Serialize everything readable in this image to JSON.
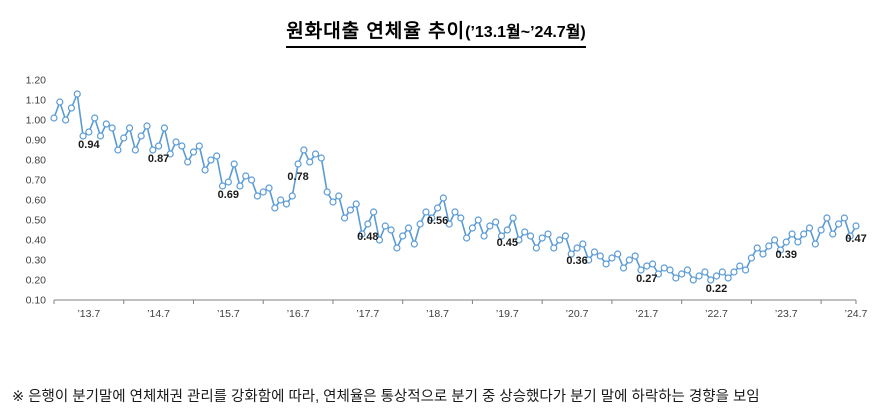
{
  "title": {
    "main": "원화대출 연체율 추이",
    "range": "(’13.1월~’24.7월)"
  },
  "footnote": "※ 은행이 분기말에 연체채권 관리를 강화함에 따라, 연체율은 통상적으로 분기 중 상승했다가 분기 말에 하락하는 경향을 보임",
  "chart_data": {
    "type": "line",
    "title": "원화대출 연체율 추이(’13.1월~’24.7월)",
    "x_start": "2013-01",
    "x_end": "2024-07",
    "x_unit": "month",
    "ylim": [
      0.1,
      1.2
    ],
    "grid": false,
    "legend": "none",
    "line_color": "#5B9BD5",
    "marker_fill": "#FFFFFF",
    "axis_color": "#808080",
    "label_color": "#404040",
    "y_ticks": [
      "1.20",
      "1.10",
      "1.00",
      "0.90",
      "0.80",
      "0.70",
      "0.60",
      "0.50",
      "0.40",
      "0.30",
      "0.20",
      "0.10"
    ],
    "x_tick_labels": [
      {
        "index": 6,
        "label": "’13.7"
      },
      {
        "index": 18,
        "label": "’14.7"
      },
      {
        "index": 30,
        "label": "’15.7"
      },
      {
        "index": 42,
        "label": "’16.7"
      },
      {
        "index": 54,
        "label": "’17.7"
      },
      {
        "index": 66,
        "label": "’18.7"
      },
      {
        "index": 78,
        "label": "’19.7"
      },
      {
        "index": 90,
        "label": "’20.7"
      },
      {
        "index": 102,
        "label": "’21.7"
      },
      {
        "index": 114,
        "label": "’22.7"
      },
      {
        "index": 126,
        "label": "’23.7"
      },
      {
        "index": 138,
        "label": "’24.7"
      }
    ],
    "annotations": [
      {
        "index": 6,
        "label": "0.94"
      },
      {
        "index": 18,
        "label": "0.87"
      },
      {
        "index": 30,
        "label": "0.69"
      },
      {
        "index": 42,
        "label": "0.78"
      },
      {
        "index": 54,
        "label": "0.48"
      },
      {
        "index": 66,
        "label": "0.56"
      },
      {
        "index": 78,
        "label": "0.45"
      },
      {
        "index": 90,
        "label": "0.36"
      },
      {
        "index": 102,
        "label": "0.27"
      },
      {
        "index": 114,
        "label": "0.22"
      },
      {
        "index": 126,
        "label": "0.39"
      },
      {
        "index": 138,
        "label": "0.47"
      }
    ],
    "series": [
      {
        "name": "원화대출 연체율(%)",
        "values": [
          1.01,
          1.09,
          1.0,
          1.06,
          1.13,
          0.92,
          0.94,
          1.01,
          0.92,
          0.98,
          0.96,
          0.85,
          0.91,
          0.96,
          0.85,
          0.92,
          0.97,
          0.85,
          0.87,
          0.96,
          0.83,
          0.89,
          0.87,
          0.79,
          0.84,
          0.87,
          0.75,
          0.8,
          0.82,
          0.67,
          0.69,
          0.78,
          0.67,
          0.72,
          0.7,
          0.62,
          0.64,
          0.66,
          0.56,
          0.6,
          0.58,
          0.62,
          0.78,
          0.85,
          0.79,
          0.83,
          0.81,
          0.64,
          0.59,
          0.62,
          0.51,
          0.55,
          0.58,
          0.43,
          0.48,
          0.54,
          0.4,
          0.47,
          0.45,
          0.36,
          0.42,
          0.46,
          0.38,
          0.48,
          0.54,
          0.51,
          0.56,
          0.61,
          0.48,
          0.54,
          0.51,
          0.41,
          0.46,
          0.5,
          0.42,
          0.47,
          0.49,
          0.42,
          0.45,
          0.51,
          0.4,
          0.44,
          0.42,
          0.36,
          0.41,
          0.43,
          0.36,
          0.4,
          0.42,
          0.33,
          0.36,
          0.38,
          0.3,
          0.34,
          0.32,
          0.28,
          0.31,
          0.33,
          0.26,
          0.3,
          0.32,
          0.25,
          0.27,
          0.28,
          0.23,
          0.26,
          0.25,
          0.21,
          0.23,
          0.25,
          0.2,
          0.22,
          0.24,
          0.2,
          0.22,
          0.24,
          0.21,
          0.24,
          0.27,
          0.25,
          0.31,
          0.36,
          0.33,
          0.37,
          0.4,
          0.35,
          0.39,
          0.43,
          0.39,
          0.43,
          0.46,
          0.38,
          0.45,
          0.51,
          0.43,
          0.48,
          0.51,
          0.42,
          0.47
        ]
      }
    ]
  }
}
